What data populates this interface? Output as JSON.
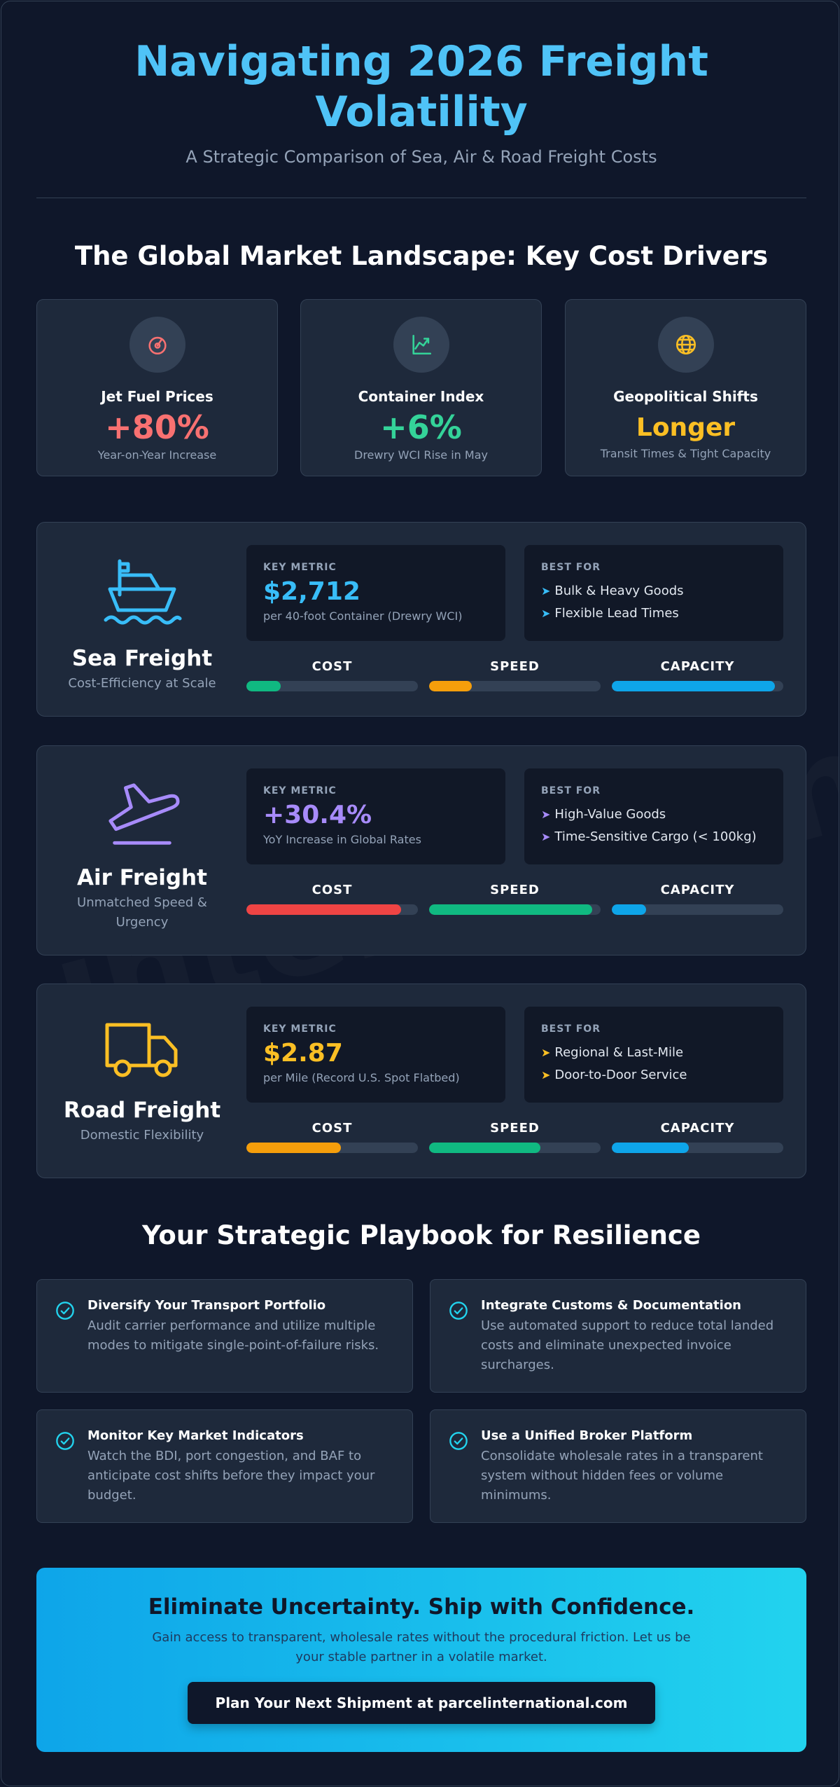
{
  "colors": {
    "title": "#4fc3f7",
    "red": "#f87171",
    "green": "#34d399",
    "amber": "#fbbf24",
    "sea": "#38bdf8",
    "air": "#a78bfa",
    "road": "#fbbf24",
    "bar_green": "#10b981",
    "bar_orange": "#f59e0b",
    "bar_blue": "#0ea5e9",
    "bar_red": "#ef4444"
  },
  "header": {
    "title": "Navigating 2026 Freight Volatility",
    "subtitle": "A Strategic Comparison of Sea, Air & Road Freight Costs"
  },
  "watermark": "internation",
  "landscape": {
    "title": "The Global Market Landscape: Key Cost Drivers",
    "cards": [
      {
        "icon": "fuel-gauge-icon",
        "label": "Jet Fuel Prices",
        "value": "+80%",
        "sub": "Year-on-Year Increase"
      },
      {
        "icon": "chart-trend-icon",
        "label": "Container Index",
        "value": "+6%",
        "sub": "Drewry WCI Rise in May"
      },
      {
        "icon": "globe-icon",
        "label": "Geopolitical Shifts",
        "value": "Longer",
        "sub": "Transit Times & Tight Capacity"
      }
    ]
  },
  "modes": [
    {
      "icon": "ship-icon",
      "name": "Sea Freight",
      "tagline": "Cost-Efficiency at Scale",
      "metric_label": "KEY METRIC",
      "metric_value": "$2,712",
      "metric_sub": "per 40-foot Container (Drewry WCI)",
      "best_label": "BEST FOR",
      "best": [
        "Bulk & Heavy Goods",
        "Flexible Lead Times"
      ],
      "bars": [
        {
          "label": "COST",
          "level": 0.2
        },
        {
          "label": "SPEED",
          "level": 0.25
        },
        {
          "label": "CAPACITY",
          "level": 0.95
        }
      ]
    },
    {
      "icon": "airplane-icon",
      "name": "Air Freight",
      "tagline": "Unmatched Speed & Urgency",
      "metric_label": "KEY METRIC",
      "metric_value": "+30.4%",
      "metric_sub": "YoY Increase in Global Rates",
      "best_label": "BEST FOR",
      "best": [
        "High-Value Goods",
        "Time-Sensitive Cargo (< 100kg)"
      ],
      "bars": [
        {
          "label": "COST",
          "level": 0.9
        },
        {
          "label": "SPEED",
          "level": 0.95
        },
        {
          "label": "CAPACITY",
          "level": 0.2
        }
      ]
    },
    {
      "icon": "truck-icon",
      "name": "Road Freight",
      "tagline": "Domestic Flexibility",
      "metric_label": "KEY METRIC",
      "metric_value": "$2.87",
      "metric_sub": "per Mile (Record U.S. Spot Flatbed)",
      "best_label": "BEST FOR",
      "best": [
        "Regional & Last-Mile",
        "Door-to-Door Service"
      ],
      "bars": [
        {
          "label": "COST",
          "level": 0.55
        },
        {
          "label": "SPEED",
          "level": 0.65
        },
        {
          "label": "CAPACITY",
          "level": 0.45
        }
      ]
    }
  ],
  "playbook": {
    "title": "Your Strategic Playbook for Resilience",
    "items": [
      {
        "title": "Diversify Your Transport Portfolio",
        "text": "Audit carrier performance and utilize multiple modes to mitigate single-point-of-failure risks."
      },
      {
        "title": "Integrate Customs & Documentation",
        "text": "Use automated support to reduce total landed costs and eliminate unexpected invoice surcharges."
      },
      {
        "title": "Monitor Key Market Indicators",
        "text": "Watch the BDI, port congestion, and BAF to anticipate cost shifts before they impact your budget."
      },
      {
        "title": "Use a Unified Broker Platform",
        "text": "Consolidate wholesale rates in a transparent system without hidden fees or volume minimums."
      }
    ]
  },
  "cta": {
    "title": "Eliminate Uncertainty. Ship with Confidence.",
    "text": "Gain access to transparent, wholesale rates without the procedural friction. Let us be your stable partner in a volatile market.",
    "button": "Plan Your Next Shipment at parcelinternational.com"
  }
}
